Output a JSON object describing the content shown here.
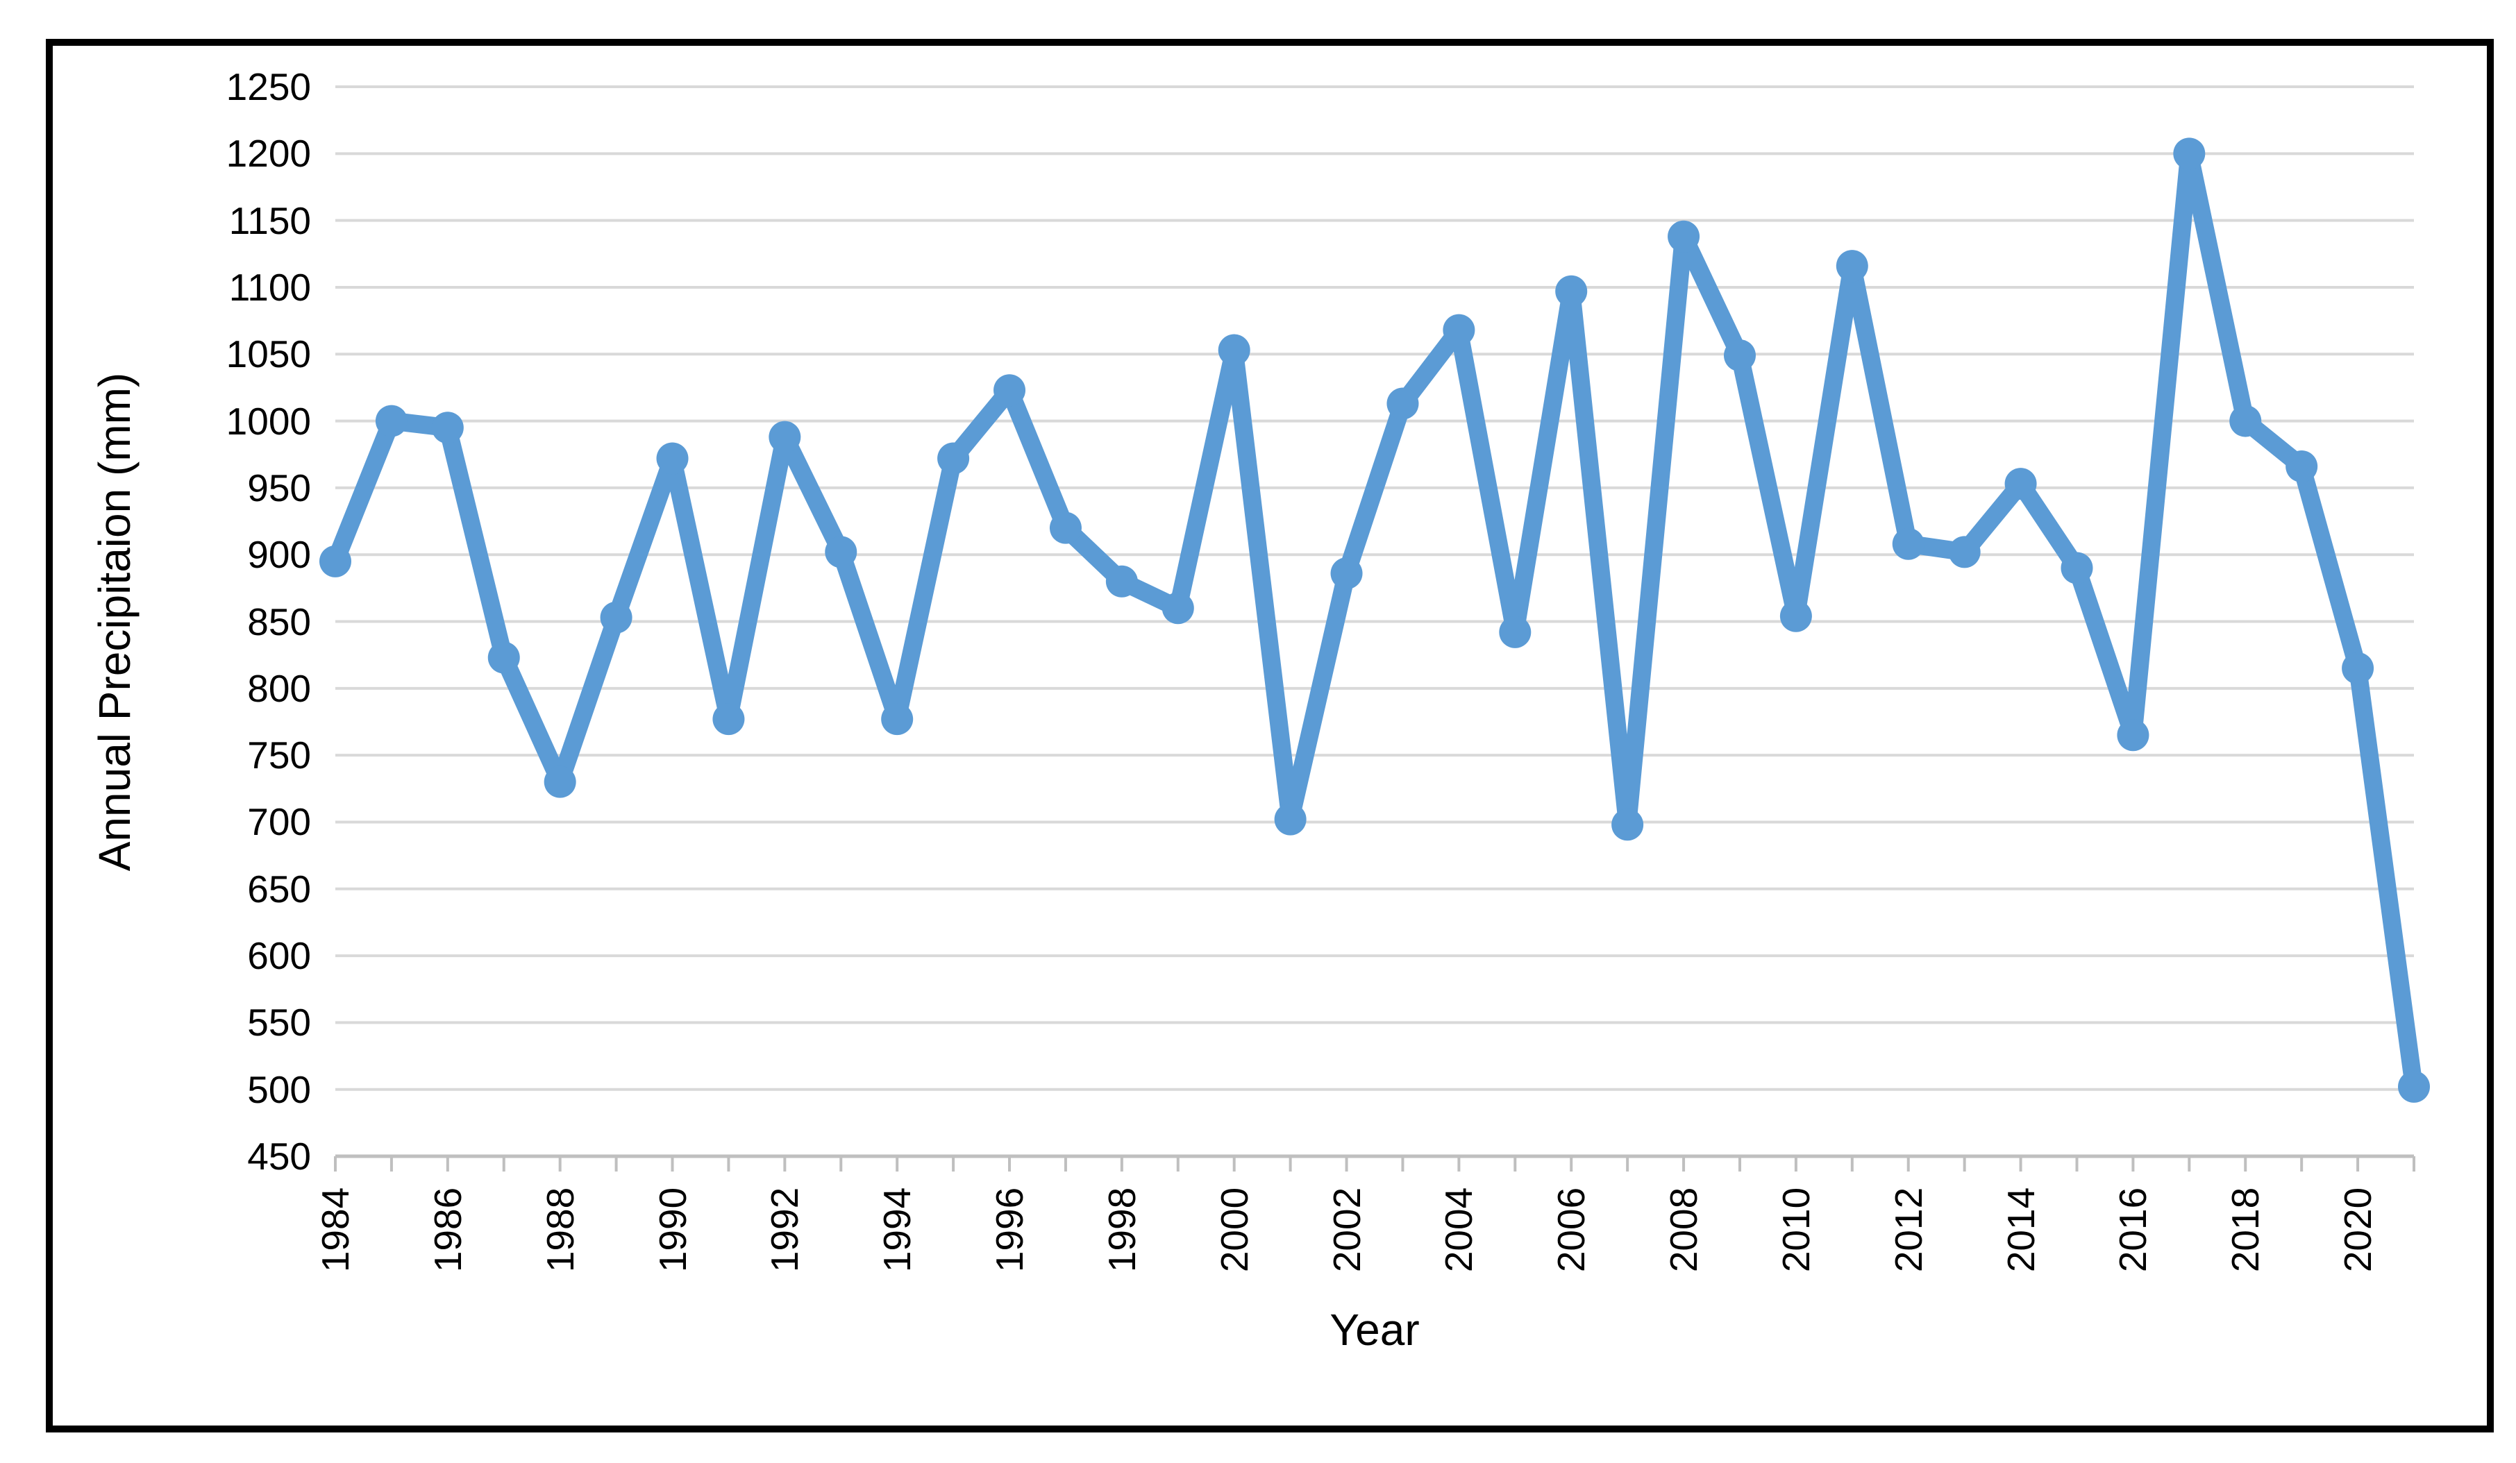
{
  "figure": {
    "y_axis_title": "Annual Precipitaion (mm)",
    "x_axis_title": "Year",
    "y_tick_labels": [
      "1250",
      "1200",
      "1150",
      "1100",
      "1050",
      "1000",
      "950",
      "900",
      "850",
      "800",
      "750",
      "700",
      "650",
      "600",
      "550",
      "500",
      "450"
    ],
    "x_tick_labels": [
      "1984",
      "1986",
      "1988",
      "1990",
      "1992",
      "1994",
      "1996",
      "1998",
      "2000",
      "2002",
      "2004",
      "2006",
      "2008",
      "2010",
      "2012",
      "2014",
      "2016",
      "2018",
      "2020"
    ]
  },
  "chart_data": {
    "type": "line",
    "title": "",
    "xlabel": "Year",
    "ylabel": "Annual Precipitaion (mm)",
    "x": [
      1984,
      1985,
      1986,
      1987,
      1988,
      1989,
      1990,
      1991,
      1992,
      1993,
      1994,
      1995,
      1996,
      1997,
      1998,
      1999,
      2000,
      2001,
      2002,
      2003,
      2004,
      2005,
      2006,
      2007,
      2008,
      2009,
      2010,
      2011,
      2012,
      2013,
      2014,
      2015,
      2016,
      2017,
      2018,
      2019,
      2020,
      2021
    ],
    "series": [
      {
        "name": "Annual Precipitation (mm)",
        "values": [
          895,
          1000,
          995,
          823,
          730,
          853,
          972,
          777,
          988,
          902,
          777,
          972,
          1023,
          920,
          880,
          860,
          1053,
          702,
          886,
          1013,
          1068,
          842,
          1097,
          698,
          1138,
          1049,
          854,
          1116,
          908,
          902,
          953,
          890,
          765,
          1200,
          1000,
          966,
          815,
          502
        ]
      }
    ],
    "ylim": [
      450,
      1250
    ],
    "ytick_step": 50,
    "x_label_step": 2,
    "grid": true,
    "legend_position": "none",
    "line_color": "#5B9BD5",
    "marker": "circle",
    "gridline_color": "#D9D9D9",
    "axis_line_color": "#BFBFBF",
    "text_color": "#000000"
  }
}
